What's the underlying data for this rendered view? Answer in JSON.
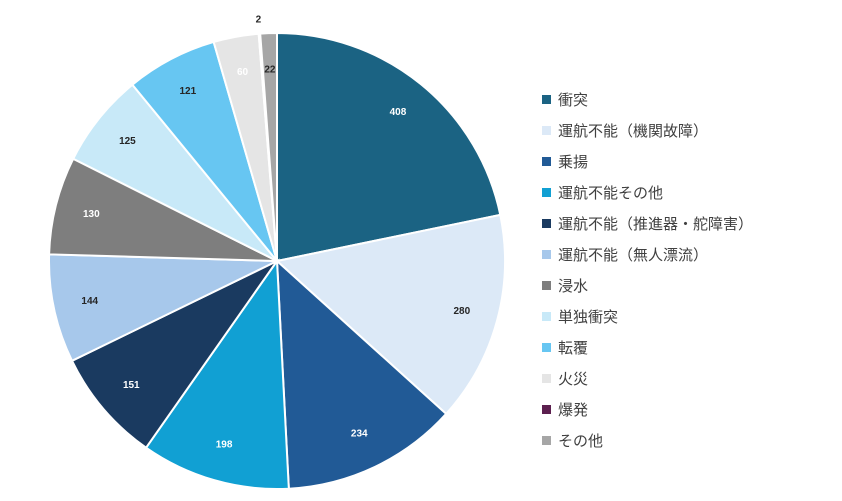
{
  "chart_data": {
    "type": "pie",
    "title": "",
    "start": "12 o'clock, clockwise",
    "legend_position": "right",
    "slices": [
      {
        "label": "衝突",
        "value": 408,
        "color": "#1b6383",
        "label_color": "#ffffff"
      },
      {
        "label": "運航不能（機関故障）",
        "value": 280,
        "color": "#dce9f7",
        "label_color": "#262626"
      },
      {
        "label": "乗揚",
        "value": 234,
        "color": "#215a96",
        "label_color": "#ffffff"
      },
      {
        "label": "運航不能その他",
        "value": 198,
        "color": "#11a0d3",
        "label_color": "#ffffff"
      },
      {
        "label": "運航不能（推進器・舵障害）",
        "value": 151,
        "color": "#1a3a60",
        "label_color": "#ffffff"
      },
      {
        "label": "運航不能（無人漂流）",
        "value": 144,
        "color": "#a7c8eb",
        "label_color": "#262626"
      },
      {
        "label": "浸水",
        "value": 130,
        "color": "#7e7e7e",
        "label_color": "#ffffff"
      },
      {
        "label": "単独衝突",
        "value": 125,
        "color": "#c8e9f8",
        "label_color": "#262626"
      },
      {
        "label": "転覆",
        "value": 121,
        "color": "#67c6f2",
        "label_color": "#262626"
      },
      {
        "label": "火災",
        "value": 60,
        "color": "#e5e5e5",
        "label_color": "#ffffff"
      },
      {
        "label": "爆発",
        "value": 2,
        "color": "#5c1f4f",
        "label_color": "#262626"
      },
      {
        "label": "その他",
        "value": 22,
        "color": "#a6a6a6",
        "label_color": "#262626"
      }
    ]
  }
}
